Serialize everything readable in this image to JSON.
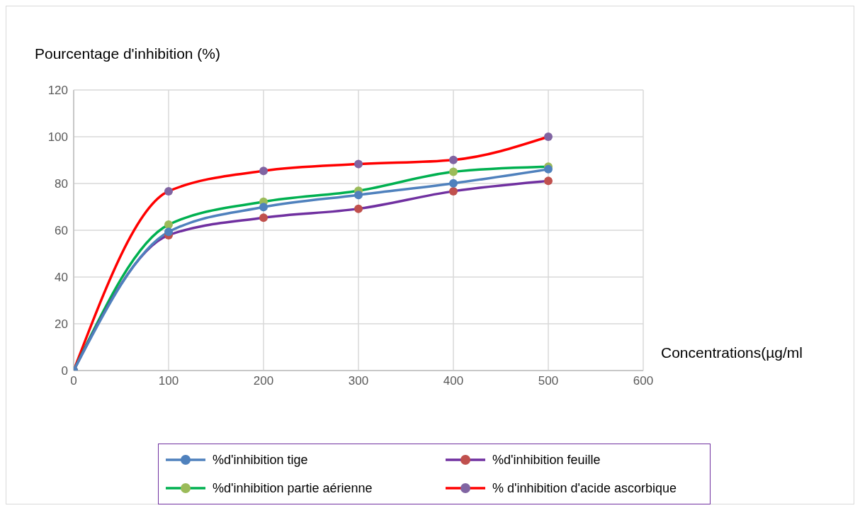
{
  "chart_data": {
    "type": "line",
    "ylabel": "Pourcentage d'inhibition (%)",
    "xlabel": "Concentrations(µg/ml",
    "x": [
      0,
      100,
      200,
      300,
      400,
      500
    ],
    "xlim": [
      0,
      600
    ],
    "xticks": [
      0,
      100,
      200,
      300,
      400,
      500,
      600
    ],
    "ylim": [
      0,
      120
    ],
    "yticks": [
      0,
      20,
      40,
      60,
      80,
      100,
      120
    ],
    "grid": true,
    "legend": "bottom",
    "marker": "circle",
    "series": [
      {
        "name": "%d'inhibition tige",
        "color": "#4f81bd",
        "colors": [
          "#4f81bd",
          "#4f81bd",
          "#4f81bd",
          "#4f81bd",
          "#4f81bd",
          "#4f81bd"
        ],
        "values": [
          0,
          59.3,
          69.9,
          75.1,
          80.1,
          86.1
        ]
      },
      {
        "name": "%d'inhibition feuille",
        "color": "#7030a0",
        "colors": [
          "#c0504d",
          "#c0504d",
          "#c0504d",
          "#c0504d",
          "#c0504d",
          "#c0504d"
        ],
        "values": [
          0,
          57.9,
          65.4,
          69.2,
          76.7,
          81.1
        ]
      },
      {
        "name": "%d'inhibition partie aérienne",
        "color": "#00b050",
        "colors": [
          "#9bbb59",
          "#9bbb59",
          "#9bbb59",
          "#9bbb59",
          "#9bbb59",
          "#9bbb59"
        ],
        "values": [
          0,
          62.4,
          72.2,
          76.9,
          85,
          87.2
        ]
      },
      {
        "name": "% d'inhibition d'acide ascorbique",
        "color": "#ff0000",
        "colors": [
          "#8064a2",
          "#8064a2",
          "#8064a2",
          "#8064a2",
          "#8064a2",
          "#8064a2"
        ],
        "values": [
          0,
          76.7,
          85.4,
          88.3,
          90.1,
          100
        ]
      }
    ]
  }
}
